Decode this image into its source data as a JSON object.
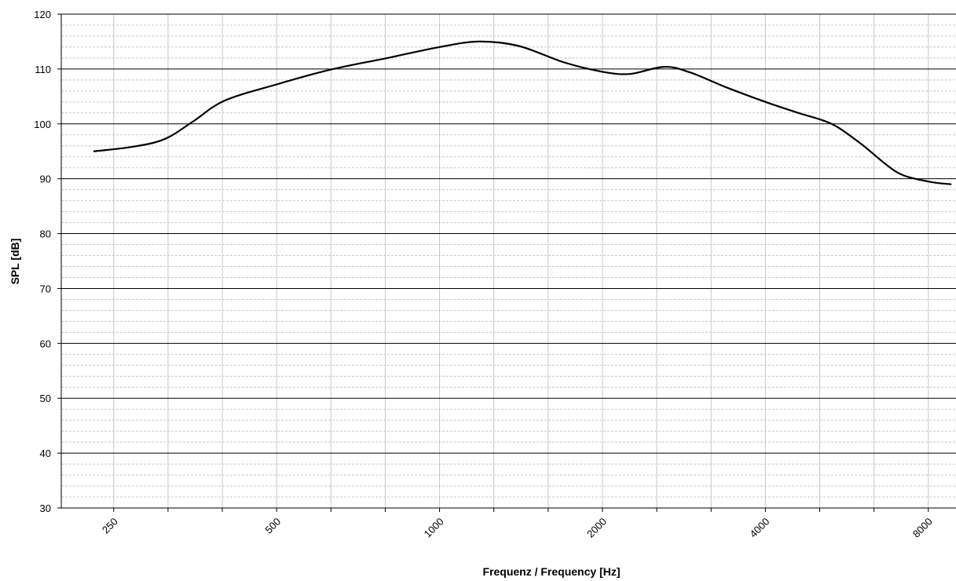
{
  "chart_data": {
    "type": "line",
    "title": "",
    "xlabel": "Frequenz / Frequency [Hz]",
    "ylabel": "SPL [dB]",
    "x_scale": "log2",
    "xlim": [
      200,
      9000
    ],
    "ylim": [
      30,
      120
    ],
    "y_ticks": [
      "30",
      "40",
      "50",
      "60",
      "70",
      "80",
      "90",
      "100",
      "110",
      "120"
    ],
    "x_tick_labels": [
      {
        "value": 250,
        "label": "250"
      },
      {
        "value": 500,
        "label": "500"
      },
      {
        "value": 1000,
        "label": "1000"
      },
      {
        "value": 2000,
        "label": "2000"
      },
      {
        "value": 4000,
        "label": "4000"
      },
      {
        "value": 8000,
        "label": "8000"
      }
    ],
    "grid": true,
    "legend": "none",
    "line_color": "#000000",
    "series": [
      {
        "x": [
          230,
          270,
          310,
          350,
          400,
          500,
          630,
          800,
          1000,
          1180,
          1400,
          1700,
          2000,
          2250,
          2600,
          2900,
          3400,
          4000,
          4600,
          5300,
          6000,
          7000,
          8000,
          8800
        ],
        "y": [
          95,
          95.8,
          97.2,
          100.4,
          104.2,
          107.2,
          109.9,
          112,
          114,
          115,
          114.2,
          111.2,
          109.5,
          109.1,
          110.4,
          109.4,
          106.6,
          104,
          102,
          100,
          96.4,
          91.2,
          89.5,
          89
        ]
      }
    ]
  }
}
